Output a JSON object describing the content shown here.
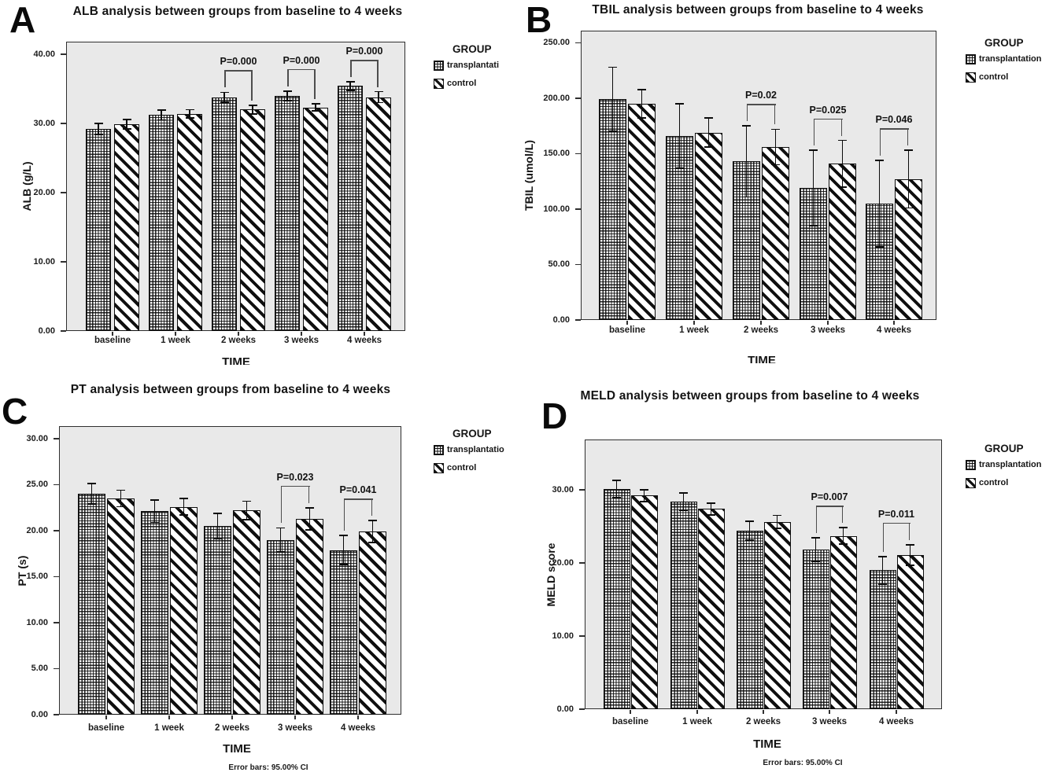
{
  "figure": {
    "xlabel": "TIME",
    "legend_title": "GROUP",
    "error_note": "Error bars: 95.00% CI",
    "colors": {
      "plot_background": "#e9e9e9",
      "ink": "#0c0c0c",
      "page": "#ffffff"
    }
  },
  "chart_data": [
    {
      "type": "bar",
      "panel": "A",
      "title": "ALB analysis between groups from baseline to 4 weeks",
      "ylabel": "ALB (g/L)",
      "xlabel": "TIME",
      "ylim": [
        0,
        40
      ],
      "yticks": [
        0,
        10,
        20,
        30,
        40
      ],
      "ytick_labels": [
        "0.00",
        "10.00",
        "20.00",
        "30.00",
        "40.00"
      ],
      "categories": [
        "baseline",
        "1 week",
        "2 weeks",
        "3 weeks",
        "4 weeks"
      ],
      "legend": {
        "title": "GROUP",
        "items": [
          {
            "label": "transplantati",
            "pattern": "grid"
          },
          {
            "label": "control",
            "pattern": "diagonal"
          }
        ]
      },
      "series": [
        {
          "name": "transplantation",
          "values": [
            29.2,
            31.2,
            33.8,
            34.0,
            35.4
          ],
          "ci": [
            0.8,
            0.7,
            0.7,
            0.7,
            0.6
          ]
        },
        {
          "name": "control",
          "values": [
            29.9,
            31.4,
            32.0,
            32.3,
            33.8
          ],
          "ci": [
            0.7,
            0.6,
            0.6,
            0.5,
            0.8
          ]
        }
      ],
      "annotations": [
        {
          "category_index": 2,
          "label": "P=0.000"
        },
        {
          "category_index": 3,
          "label": "P=0.000"
        },
        {
          "category_index": 4,
          "label": "P=0.000"
        }
      ]
    },
    {
      "type": "bar",
      "panel": "B",
      "title": "TBIL analysis between groups from baseline to 4 weeks",
      "ylabel": "TBIL (umol/L)",
      "xlabel": "TIME",
      "ylim": [
        0,
        250
      ],
      "yticks": [
        0,
        50,
        100,
        150,
        200,
        250
      ],
      "ytick_labels": [
        "0.00",
        "50.00",
        "100.00",
        "150.00",
        "200.00",
        "250.00"
      ],
      "categories": [
        "baseline",
        "1 week",
        "2 weeks",
        "3 weeks",
        "4 weeks"
      ],
      "legend": {
        "title": "GROUP",
        "items": [
          {
            "label": "transplantation",
            "pattern": "grid"
          },
          {
            "label": "control",
            "pattern": "diagonal"
          }
        ]
      },
      "series": [
        {
          "name": "transplantation",
          "values": [
            199,
            166,
            143,
            119,
            105
          ],
          "ci": [
            29,
            29,
            32,
            34,
            39
          ]
        },
        {
          "name": "control",
          "values": [
            195,
            169,
            156,
            141,
            127
          ],
          "ci": [
            13,
            13,
            16,
            21,
            26
          ]
        }
      ],
      "annotations": [
        {
          "category_index": 2,
          "label": "P=0.02"
        },
        {
          "category_index": 3,
          "label": "P=0.025"
        },
        {
          "category_index": 4,
          "label": "P=0.046"
        }
      ]
    },
    {
      "type": "bar",
      "panel": "C",
      "title": "PT analysis between groups from baseline to 4 weeks",
      "ylabel": "PT (s)",
      "xlabel": "TIME",
      "footer": "Error bars: 95.00% CI",
      "ylim": [
        0,
        30
      ],
      "yticks": [
        0,
        5,
        10,
        15,
        20,
        25,
        30
      ],
      "ytick_labels": [
        "0.00",
        "5.00",
        "10.00",
        "15.00",
        "20.00",
        "25.00",
        "30.00"
      ],
      "categories": [
        "baseline",
        "1 week",
        "2 weeks",
        "3 weeks",
        "4 weeks"
      ],
      "legend": {
        "title": "GROUP",
        "items": [
          {
            "label": "transplantatio",
            "pattern": "grid"
          },
          {
            "label": "control",
            "pattern": "diagonal"
          }
        ]
      },
      "series": [
        {
          "name": "transplantation",
          "values": [
            24.0,
            22.1,
            20.5,
            19.0,
            17.9
          ],
          "ci": [
            1.1,
            1.2,
            1.4,
            1.3,
            1.6
          ]
        },
        {
          "name": "control",
          "values": [
            23.5,
            22.6,
            22.2,
            21.3,
            19.9
          ],
          "ci": [
            0.9,
            0.9,
            1.0,
            1.2,
            1.2
          ]
        }
      ],
      "annotations": [
        {
          "category_index": 3,
          "label": "P=0.023"
        },
        {
          "category_index": 4,
          "label": "P=0.041"
        }
      ]
    },
    {
      "type": "bar",
      "panel": "D",
      "title": "MELD analysis between groups from baseline to 4 weeks",
      "ylabel": "MELD score",
      "xlabel": "TIME",
      "footer": "Error bars: 95.00% CI",
      "ylim": [
        0,
        30
      ],
      "yticks": [
        0,
        10,
        20,
        30
      ],
      "ytick_labels": [
        "0.00",
        "10.00",
        "20.00",
        "30.00"
      ],
      "categories": [
        "baseline",
        "1 week",
        "2 weeks",
        "3 weeks",
        "4 weeks"
      ],
      "legend": {
        "title": "GROUP",
        "items": [
          {
            "label": "transplantation",
            "pattern": "grid"
          },
          {
            "label": "control",
            "pattern": "diagonal"
          }
        ]
      },
      "series": [
        {
          "name": "transplantation",
          "values": [
            30.1,
            28.4,
            24.4,
            21.8,
            19.0
          ],
          "ci": [
            1.2,
            1.2,
            1.3,
            1.6,
            1.9
          ]
        },
        {
          "name": "control",
          "values": [
            29.2,
            27.4,
            25.6,
            23.7,
            21.1
          ],
          "ci": [
            0.8,
            0.8,
            0.9,
            1.1,
            1.4
          ]
        }
      ],
      "annotations": [
        {
          "category_index": 3,
          "label": "P=0.007"
        },
        {
          "category_index": 4,
          "label": "P=0.011"
        }
      ]
    }
  ]
}
